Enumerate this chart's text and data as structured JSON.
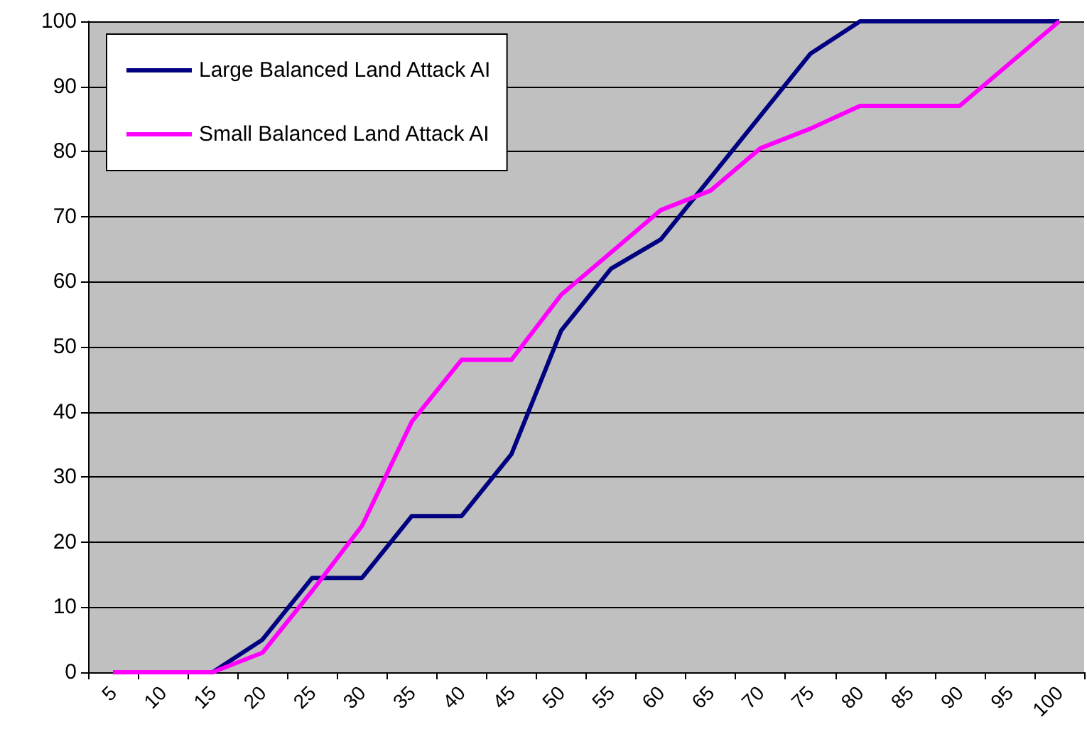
{
  "chart_data": {
    "type": "line",
    "categories": [
      "5",
      "10",
      "15",
      "20",
      "25",
      "30",
      "35",
      "40",
      "45",
      "50",
      "55",
      "60",
      "65",
      "70",
      "75",
      "80",
      "85",
      "90",
      "95",
      "100"
    ],
    "series": [
      {
        "name": "Large Balanced Land Attack AI",
        "color": "#000080",
        "values": [
          0,
          0,
          0,
          5,
          14.5,
          14.5,
          24,
          24,
          33.5,
          52.5,
          62,
          66.5,
          76,
          85.5,
          95,
          100,
          100,
          100,
          100,
          100
        ]
      },
      {
        "name": "Small Balanced Land Attack AI",
        "color": "#ff00ff",
        "values": [
          0,
          0,
          0,
          3,
          12.5,
          22.5,
          38.5,
          48,
          48,
          58,
          64.5,
          71,
          74,
          80.5,
          83.5,
          87,
          87,
          87,
          93.5,
          100
        ]
      }
    ],
    "ylim": [
      0,
      100
    ],
    "yticks": [
      0,
      10,
      20,
      30,
      40,
      50,
      60,
      70,
      80,
      90,
      100
    ],
    "grid": "y",
    "legend": "top left",
    "marker": "none",
    "line_style": "solid"
  }
}
